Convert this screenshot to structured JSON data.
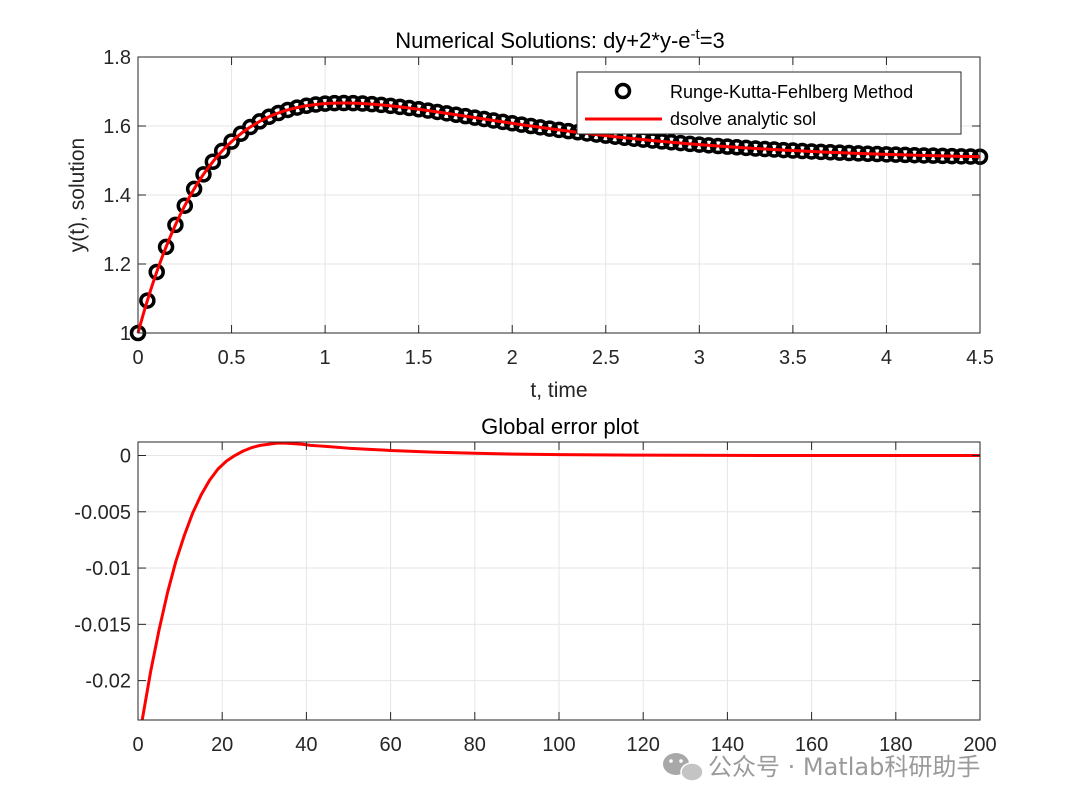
{
  "chart_data": [
    {
      "type": "line",
      "title": "Numerical Solutions: dy+2*y-e",
      "title_superscript": "-t",
      "title_suffix": "=3",
      "xlabel": "t, time",
      "ylabel": "y(t), solution",
      "xlim": [
        0,
        4.5
      ],
      "ylim": [
        1,
        1.8
      ],
      "xticks": [
        0,
        0.5,
        1,
        1.5,
        2,
        2.5,
        3,
        3.5,
        4,
        4.5
      ],
      "xtick_labels": [
        "0",
        "0.5",
        "1",
        "1.5",
        "2",
        "2.5",
        "3",
        "3.5",
        "4",
        "4.5"
      ],
      "yticks": [
        1,
        1.2,
        1.4,
        1.6,
        1.8
      ],
      "ytick_labels": [
        "1",
        "1.2",
        "1.4",
        "1.6",
        "1.8"
      ],
      "grid": true,
      "legend_location": "top-right",
      "series": [
        {
          "name": "Runge-Kutta-Fehlberg Method",
          "style": "markers",
          "marker": "circle",
          "color": "#000000",
          "t_start": 0,
          "t_step": 0.05,
          "count": 91,
          "model": "y(t) = 1.5 + e^-t - 1.5 e^-2t"
        },
        {
          "name": "dsolve analytic sol",
          "style": "line",
          "color": "#ff0000",
          "t_start": 0,
          "t_end": 4.5,
          "model": "y(t) = 1.5 + e^-t - 1.5 e^-2t"
        }
      ]
    },
    {
      "type": "line",
      "title": "Global error plot",
      "xlabel": "",
      "ylabel": "",
      "xlim": [
        0,
        200
      ],
      "ylim": [
        -0.0235,
        0.0012
      ],
      "xticks": [
        0,
        20,
        40,
        60,
        80,
        100,
        120,
        140,
        160,
        180,
        200
      ],
      "xtick_labels": [
        "0",
        "20",
        "40",
        "60",
        "80",
        "100",
        "120",
        "140",
        "160",
        "180",
        "200"
      ],
      "yticks": [
        0,
        -0.005,
        -0.01,
        -0.015,
        -0.02
      ],
      "ytick_labels": [
        "0",
        "-0.005",
        "-0.01",
        "-0.015",
        "-0.02"
      ],
      "grid": true,
      "series": [
        {
          "name": "global error",
          "style": "line",
          "color": "#ff0000",
          "x": [
            1,
            3,
            5,
            7,
            9,
            11,
            13,
            15,
            17,
            19,
            21,
            23,
            25,
            27,
            29,
            31,
            33,
            35,
            37,
            39,
            41,
            43,
            45,
            50,
            55,
            60,
            70,
            80,
            90,
            100,
            120,
            140,
            160,
            180,
            200
          ],
          "values": [
            -0.0235,
            -0.0192,
            -0.0155,
            -0.0122,
            -0.0094,
            -0.0071,
            -0.0051,
            -0.0035,
            -0.0022,
            -0.0012,
            -0.0005,
            0.0,
            0.0004,
            0.0007,
            0.0009,
            0.001,
            0.0011,
            0.0011,
            0.00105,
            0.001,
            0.0009,
            0.00085,
            0.0008,
            0.00065,
            0.00055,
            0.00045,
            0.0003,
            0.0002,
            0.00012,
            8e-05,
            3e-05,
            1e-05,
            0.0,
            0.0,
            0.0
          ]
        }
      ]
    }
  ],
  "watermark": {
    "text": "公众号 · Matlab科研助手",
    "icon": "wechat-icon"
  }
}
